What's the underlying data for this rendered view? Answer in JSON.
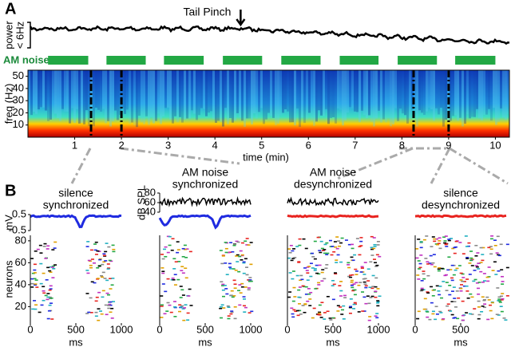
{
  "panel_a": {
    "label": "A",
    "power_label": [
      "power",
      "< 6Hz"
    ],
    "tail_pinch": "Tail Pinch",
    "tail_pinch_time": 4.55,
    "am_noise_label": "AM noise",
    "am_noise_on": [
      [
        0.43,
        1.29
      ],
      [
        1.68,
        2.52
      ],
      [
        2.91,
        3.76
      ],
      [
        4.17,
        5.01
      ],
      [
        5.42,
        6.26
      ],
      [
        6.67,
        7.5
      ],
      [
        7.91,
        8.75
      ],
      [
        9.14,
        10.0
      ]
    ],
    "window_times": [
      1.35,
      2.0,
      8.25,
      9.0
    ],
    "freq_label": "freq (Hz)",
    "freq_lim": [
      0,
      55
    ],
    "freq_ticks": [
      10,
      20,
      30,
      40,
      50
    ],
    "time_label": "time (min)",
    "time_lim": [
      0,
      10.3
    ],
    "time_ticks": [
      1,
      2,
      3,
      4,
      5,
      6,
      7,
      8,
      9,
      10
    ]
  },
  "panel_b": {
    "label": "B",
    "x_label": "ms",
    "time_lim": [
      0,
      1000
    ],
    "neurons_label": "neurons",
    "neuron_lim": [
      5,
      85
    ],
    "neuron_ticks": [
      20,
      40,
      60,
      80
    ],
    "mv_label": "mV",
    "mv_lim": [
      -0.7,
      0.7
    ],
    "mv_ticks": [
      -0.5,
      0.5
    ],
    "db_label": "dB SPL",
    "db_lim": [
      35,
      85
    ],
    "db_ticks": [
      40,
      60,
      80
    ],
    "subpanels": [
      {
        "title": "silence",
        "state": "synchronized",
        "state_color": "#1f2be0",
        "xticks": [
          0,
          500,
          1000
        ]
      },
      {
        "title": "AM noise",
        "state": "synchronized",
        "state_color": "#1f2be0",
        "xticks": [
          0,
          500,
          1000
        ]
      },
      {
        "title": "AM noise",
        "state": "desynchronized",
        "state_color": "#e8231f",
        "xticks": [
          0,
          500,
          1000
        ]
      },
      {
        "title": "silence",
        "state": "desynchronized",
        "state_color": "#e8231f",
        "xticks": [
          0,
          500
        ]
      }
    ]
  }
}
